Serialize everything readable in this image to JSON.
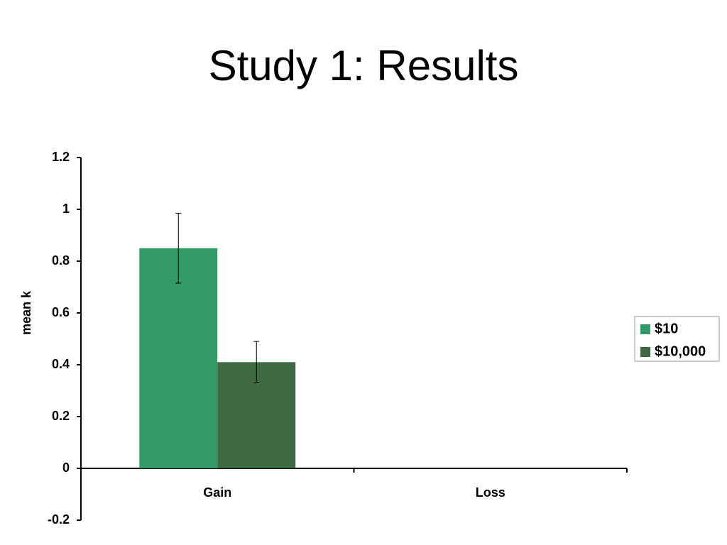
{
  "chart_data": {
    "type": "bar",
    "title": "Study 1: Results",
    "y_label": "mean k",
    "categories": [
      "Gain",
      "Loss"
    ],
    "series": [
      {
        "name": "$10",
        "color": "#339966",
        "values": [
          0.85,
          null
        ],
        "errors": [
          0.135,
          null
        ]
      },
      {
        "name": "$10,000",
        "color": "#3f6941",
        "values": [
          0.41,
          null
        ],
        "errors": [
          0.08,
          null
        ]
      }
    ],
    "ylim": [
      -0.2,
      1.2
    ],
    "yticks": [
      -0.2,
      0,
      0.2,
      0.4,
      0.6,
      0.8,
      1,
      1.2
    ],
    "grid": false,
    "legend": "right"
  }
}
